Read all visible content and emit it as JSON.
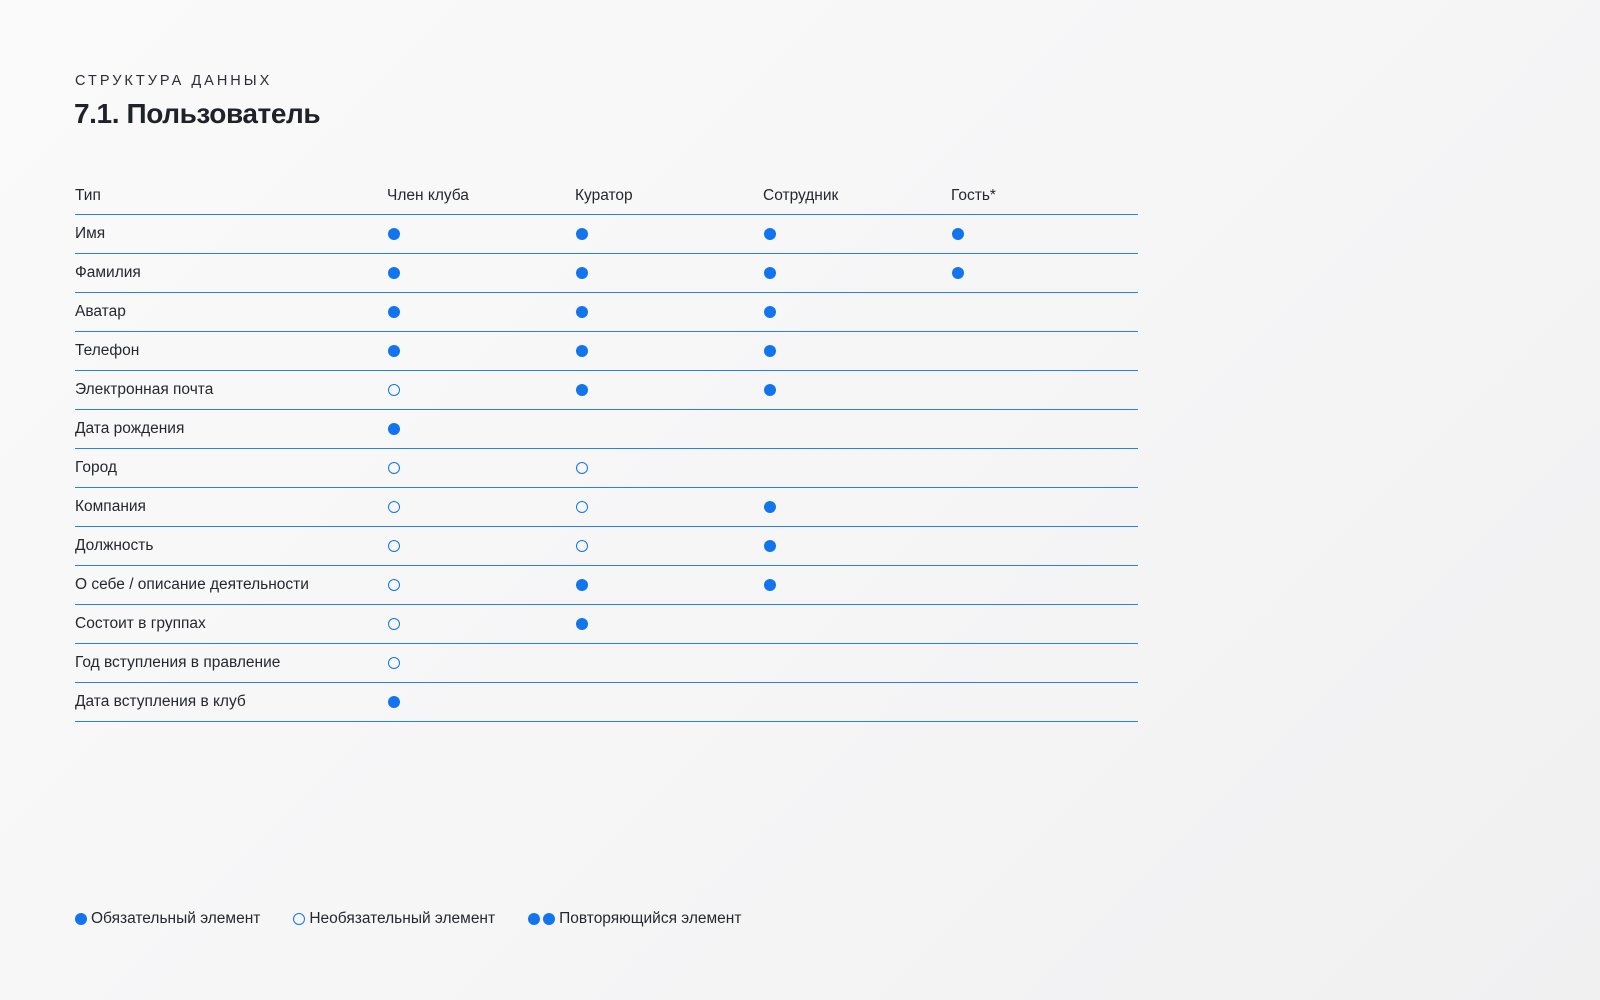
{
  "header": {
    "eyebrow": "СТРУКТУРА ДАННЫХ",
    "title": "7.1. Пользователь"
  },
  "table": {
    "columns": [
      "Тип",
      "Член клуба",
      "Куратор",
      "Сотрудник",
      "Гость*"
    ],
    "rows": [
      {
        "label": "Имя",
        "marks": [
          "required",
          "required",
          "required",
          "required"
        ]
      },
      {
        "label": "Фамилия",
        "marks": [
          "required",
          "required",
          "required",
          "required"
        ]
      },
      {
        "label": "Аватар",
        "marks": [
          "required",
          "required",
          "required",
          ""
        ]
      },
      {
        "label": "Телефон",
        "marks": [
          "required",
          "required",
          "required",
          ""
        ]
      },
      {
        "label": "Электронная почта",
        "marks": [
          "optional",
          "required",
          "required",
          ""
        ]
      },
      {
        "label": "Дата рождения",
        "marks": [
          "required",
          "",
          "",
          ""
        ]
      },
      {
        "label": "Город",
        "marks": [
          "optional",
          "optional",
          "",
          ""
        ]
      },
      {
        "label": "Компания",
        "marks": [
          "optional",
          "optional",
          "required",
          ""
        ]
      },
      {
        "label": "Должность",
        "marks": [
          "optional",
          "optional",
          "required",
          ""
        ]
      },
      {
        "label": "О себе / описание деятельности",
        "marks": [
          "optional",
          "required",
          "required",
          ""
        ]
      },
      {
        "label": "Состоит в группах",
        "marks": [
          "optional",
          "required",
          "",
          ""
        ]
      },
      {
        "label": "Год вступления в правление",
        "marks": [
          "optional",
          "",
          "",
          ""
        ]
      },
      {
        "label": "Дата вступления в клуб",
        "marks": [
          "required",
          "",
          "",
          ""
        ]
      }
    ]
  },
  "legend": {
    "required_label": "Обязательный элемент",
    "optional_label": "Необязательный элемент",
    "repeating_label": "Повторяющийся элемент"
  },
  "colors": {
    "accent": "#1275ee",
    "rule": "#2b7ef0",
    "text": "#25282d"
  },
  "icons": {
    "required": "filled-dot-icon",
    "optional": "hollow-dot-icon",
    "repeating": "double-dot-icon"
  }
}
